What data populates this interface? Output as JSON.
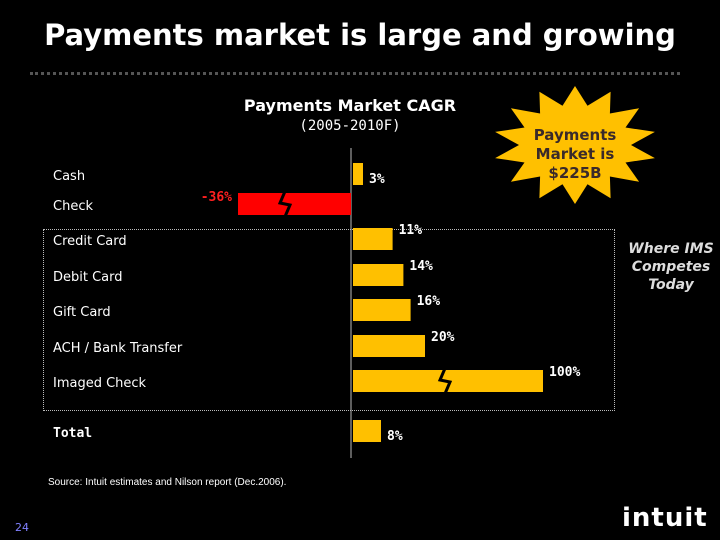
{
  "slide": {
    "title": "Payments market is large and growing",
    "source": "Source: Intuit estimates and Nilson report (Dec.2006).",
    "page_number": "24",
    "logo": "intuit"
  },
  "callout_burst": "Payments Market is $225B",
  "side_note": "Where IMS Competes Today",
  "chart_data": {
    "type": "bar",
    "orientation": "horizontal",
    "title": "Payments Market CAGR",
    "subtitle": "(2005-2010F)",
    "categories": [
      "Cash",
      "Check",
      "Credit Card",
      "Debit Card",
      "Gift Card",
      "ACH / Bank Transfer",
      "Imaged Check",
      "Total"
    ],
    "values": [
      3,
      -36,
      11,
      14,
      16,
      20,
      100,
      8
    ],
    "value_labels": [
      "3%",
      "-36%",
      "11%",
      "14%",
      "16%",
      "20%",
      "100%",
      "8%"
    ],
    "axis_breaks": [
      "Check",
      "Imaged Check"
    ],
    "highlight": {
      "Check": "#ff0000"
    },
    "bar_color": "#ffc000",
    "negative_color": "#ff0000",
    "grid": false
  },
  "colors": {
    "background": "#000000",
    "bar": "#ffc000",
    "negative": "#ff0000",
    "burst": "#ffc000",
    "page_number": "#8080ff"
  }
}
